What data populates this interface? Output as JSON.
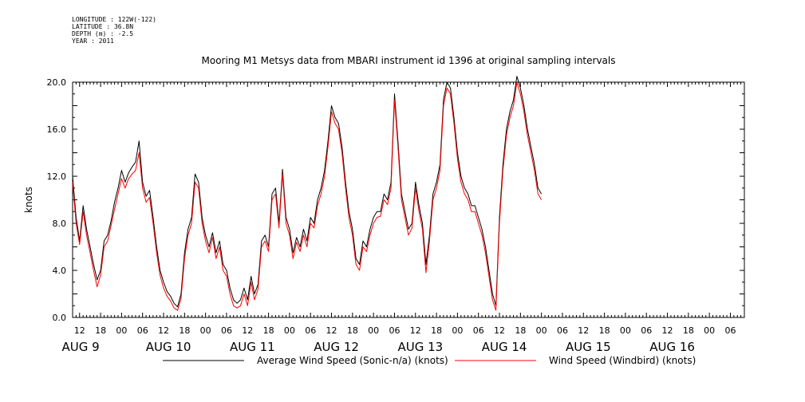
{
  "meta_lines": [
    "LONGITUDE : 122W(-122)",
    "LATITUDE : 36.8N",
    "DEPTH (m) : -2.5",
    "YEAR : 2011"
  ],
  "chart_data": {
    "type": "line",
    "title": "Mooring M1 Metsys data from MBARI instrument id 1396 at original sampling intervals",
    "ylabel": "knots",
    "xlabel": "",
    "ylim": [
      0,
      20.0
    ],
    "y_ticks": [
      "0.0",
      "4.0",
      "8.0",
      "12.0",
      "16.0",
      "20.0"
    ],
    "x_axis_range_hours": [
      -14,
      178
    ],
    "x_hour_ticks": [
      {
        "label": "12",
        "hour": -12
      },
      {
        "label": "18",
        "hour": -6
      },
      {
        "label": "00",
        "hour": 0
      },
      {
        "label": "06",
        "hour": 6
      },
      {
        "label": "12",
        "hour": 12
      },
      {
        "label": "18",
        "hour": 18
      },
      {
        "label": "00",
        "hour": 24
      },
      {
        "label": "06",
        "hour": 30
      },
      {
        "label": "12",
        "hour": 36
      },
      {
        "label": "18",
        "hour": 42
      },
      {
        "label": "00",
        "hour": 48
      },
      {
        "label": "06",
        "hour": 54
      },
      {
        "label": "12",
        "hour": 60
      },
      {
        "label": "18",
        "hour": 66
      },
      {
        "label": "00",
        "hour": 72
      },
      {
        "label": "06",
        "hour": 78
      },
      {
        "label": "12",
        "hour": 84
      },
      {
        "label": "18",
        "hour": 90
      },
      {
        "label": "00",
        "hour": 96
      },
      {
        "label": "06",
        "hour": 102
      },
      {
        "label": "12",
        "hour": 108
      },
      {
        "label": "18",
        "hour": 114
      },
      {
        "label": "00",
        "hour": 120
      },
      {
        "label": "06",
        "hour": 126
      },
      {
        "label": "12",
        "hour": 132
      },
      {
        "label": "18",
        "hour": 138
      },
      {
        "label": "00",
        "hour": 144
      },
      {
        "label": "06",
        "hour": 150
      },
      {
        "label": "12",
        "hour": 156
      },
      {
        "label": "18",
        "hour": 162
      },
      {
        "label": "00",
        "hour": 168
      },
      {
        "label": "06",
        "hour": 174
      }
    ],
    "x_date_labels": [
      {
        "label": "AUG  9",
        "hour": -18
      },
      {
        "label": "AUG 10",
        "hour": 6
      },
      {
        "label": "AUG 11",
        "hour": 30
      },
      {
        "label": "AUG 12",
        "hour": 54
      },
      {
        "label": "AUG 13",
        "hour": 78
      },
      {
        "label": "AUG 14",
        "hour": 102
      },
      {
        "label": "AUG 15",
        "hour": 126
      },
      {
        "label": "AUG 16",
        "hour": 150
      }
    ],
    "series": [
      {
        "name": "Average Wind Speed (Sonic-n/a) (knots)",
        "color": "#000000",
        "points": [
          [
            -14,
            12.0
          ],
          [
            -13,
            8.5
          ],
          [
            -12,
            6.5
          ],
          [
            -11,
            9.5
          ],
          [
            -10,
            7.5
          ],
          [
            -9,
            6.0
          ],
          [
            -8,
            4.5
          ],
          [
            -7,
            3.2
          ],
          [
            -6,
            4.0
          ],
          [
            -5,
            6.5
          ],
          [
            -4,
            7.0
          ],
          [
            -3,
            8.2
          ],
          [
            -2,
            9.8
          ],
          [
            -1,
            11.0
          ],
          [
            0,
            12.5
          ],
          [
            1,
            11.5
          ],
          [
            2,
            12.3
          ],
          [
            3,
            12.8
          ],
          [
            4,
            13.2
          ],
          [
            5,
            15.0
          ],
          [
            6,
            11.5
          ],
          [
            7,
            10.3
          ],
          [
            8,
            10.8
          ],
          [
            9,
            8.5
          ],
          [
            10,
            6.0
          ],
          [
            11,
            4.0
          ],
          [
            12,
            3.0
          ],
          [
            13,
            2.2
          ],
          [
            14,
            1.8
          ],
          [
            15,
            1.2
          ],
          [
            16,
            0.9
          ],
          [
            17,
            2.0
          ],
          [
            18,
            5.5
          ],
          [
            19,
            7.5
          ],
          [
            20,
            8.5
          ],
          [
            21,
            12.2
          ],
          [
            22,
            11.5
          ],
          [
            23,
            8.5
          ],
          [
            24,
            7.0
          ],
          [
            25,
            6.0
          ],
          [
            26,
            7.2
          ],
          [
            27,
            5.5
          ],
          [
            28,
            6.5
          ],
          [
            29,
            4.5
          ],
          [
            30,
            4.0
          ],
          [
            31,
            2.5
          ],
          [
            32,
            1.5
          ],
          [
            33,
            1.2
          ],
          [
            34,
            1.5
          ],
          [
            35,
            2.5
          ],
          [
            36,
            1.5
          ],
          [
            37,
            3.5
          ],
          [
            38,
            2.0
          ],
          [
            39,
            2.8
          ],
          [
            40,
            6.5
          ],
          [
            41,
            7.0
          ],
          [
            42,
            6.0
          ],
          [
            43,
            10.5
          ],
          [
            44,
            11.0
          ],
          [
            45,
            8.0
          ],
          [
            46,
            12.6
          ],
          [
            47,
            8.5
          ],
          [
            48,
            7.5
          ],
          [
            49,
            5.5
          ],
          [
            50,
            6.8
          ],
          [
            51,
            6.0
          ],
          [
            52,
            7.5
          ],
          [
            53,
            6.5
          ],
          [
            54,
            8.5
          ],
          [
            55,
            8.0
          ],
          [
            56,
            10.0
          ],
          [
            57,
            11.0
          ],
          [
            58,
            12.5
          ],
          [
            59,
            15.0
          ],
          [
            60,
            18.0
          ],
          [
            61,
            17.0
          ],
          [
            62,
            16.5
          ],
          [
            63,
            14.5
          ],
          [
            64,
            11.5
          ],
          [
            65,
            9.0
          ],
          [
            66,
            7.5
          ],
          [
            67,
            5.0
          ],
          [
            68,
            4.5
          ],
          [
            69,
            6.5
          ],
          [
            70,
            6.0
          ],
          [
            71,
            7.5
          ],
          [
            72,
            8.5
          ],
          [
            73,
            9.0
          ],
          [
            74,
            9.0
          ],
          [
            75,
            10.5
          ],
          [
            76,
            10.0
          ],
          [
            77,
            11.5
          ],
          [
            78,
            19.0
          ],
          [
            79,
            15.0
          ],
          [
            80,
            10.5
          ],
          [
            81,
            9.0
          ],
          [
            82,
            7.5
          ],
          [
            83,
            8.0
          ],
          [
            84,
            11.5
          ],
          [
            85,
            9.5
          ],
          [
            86,
            8.0
          ],
          [
            87,
            4.5
          ],
          [
            88,
            7.0
          ],
          [
            89,
            10.5
          ],
          [
            90,
            11.5
          ],
          [
            91,
            13.0
          ],
          [
            92,
            18.5
          ],
          [
            93,
            20.0
          ],
          [
            94,
            19.5
          ],
          [
            95,
            17.0
          ],
          [
            96,
            14.0
          ],
          [
            97,
            12.0
          ],
          [
            98,
            11.0
          ],
          [
            99,
            10.5
          ],
          [
            100,
            9.5
          ],
          [
            101,
            9.5
          ],
          [
            102,
            8.5
          ],
          [
            103,
            7.5
          ],
          [
            104,
            6.0
          ],
          [
            105,
            4.0
          ],
          [
            106,
            2.0
          ],
          [
            107,
            1.0
          ],
          [
            108,
            8.5
          ],
          [
            109,
            13.0
          ],
          [
            110,
            16.0
          ],
          [
            111,
            17.5
          ],
          [
            112,
            18.5
          ],
          [
            113,
            20.5
          ],
          [
            114,
            19.5
          ],
          [
            115,
            18.0
          ],
          [
            116,
            16.0
          ],
          [
            117,
            14.5
          ],
          [
            118,
            13.0
          ],
          [
            119,
            11.0
          ],
          [
            120,
            10.5
          ]
        ]
      },
      {
        "name": "Wind Speed (Windbird) (knots)",
        "color": "#ff0000",
        "points": [
          [
            -14,
            11.5
          ],
          [
            -13,
            8.0
          ],
          [
            -12,
            6.2
          ],
          [
            -11,
            9.0
          ],
          [
            -10,
            7.0
          ],
          [
            -9,
            5.5
          ],
          [
            -8,
            4.0
          ],
          [
            -7,
            2.6
          ],
          [
            -6,
            3.6
          ],
          [
            -5,
            6.0
          ],
          [
            -4,
            6.5
          ],
          [
            -3,
            7.8
          ],
          [
            -2,
            9.2
          ],
          [
            -1,
            10.5
          ],
          [
            0,
            11.8
          ],
          [
            1,
            11.0
          ],
          [
            2,
            11.8
          ],
          [
            3,
            12.2
          ],
          [
            4,
            12.5
          ],
          [
            5,
            14.0
          ],
          [
            6,
            11.0
          ],
          [
            7,
            9.8
          ],
          [
            8,
            10.2
          ],
          [
            9,
            8.0
          ],
          [
            10,
            5.5
          ],
          [
            11,
            3.6
          ],
          [
            12,
            2.5
          ],
          [
            13,
            1.8
          ],
          [
            14,
            1.4
          ],
          [
            15,
            0.8
          ],
          [
            16,
            0.6
          ],
          [
            17,
            1.6
          ],
          [
            18,
            5.0
          ],
          [
            19,
            7.0
          ],
          [
            20,
            8.0
          ],
          [
            21,
            11.5
          ],
          [
            22,
            11.0
          ],
          [
            23,
            8.0
          ],
          [
            24,
            6.5
          ],
          [
            25,
            5.5
          ],
          [
            26,
            6.8
          ],
          [
            27,
            5.0
          ],
          [
            28,
            6.0
          ],
          [
            29,
            4.0
          ],
          [
            30,
            3.5
          ],
          [
            31,
            2.0
          ],
          [
            32,
            1.0
          ],
          [
            33,
            0.8
          ],
          [
            34,
            1.0
          ],
          [
            35,
            2.0
          ],
          [
            36,
            1.0
          ],
          [
            37,
            3.0
          ],
          [
            38,
            1.5
          ],
          [
            39,
            2.4
          ],
          [
            40,
            6.0
          ],
          [
            41,
            6.5
          ],
          [
            42,
            5.6
          ],
          [
            43,
            10.0
          ],
          [
            44,
            10.5
          ],
          [
            45,
            7.6
          ],
          [
            46,
            12.2
          ],
          [
            47,
            8.0
          ],
          [
            48,
            7.0
          ],
          [
            49,
            5.0
          ],
          [
            50,
            6.4
          ],
          [
            51,
            5.6
          ],
          [
            52,
            7.0
          ],
          [
            53,
            6.0
          ],
          [
            54,
            8.0
          ],
          [
            55,
            7.6
          ],
          [
            56,
            9.5
          ],
          [
            57,
            10.5
          ],
          [
            58,
            12.0
          ],
          [
            59,
            14.5
          ],
          [
            60,
            17.5
          ],
          [
            61,
            16.5
          ],
          [
            62,
            16.0
          ],
          [
            63,
            14.0
          ],
          [
            64,
            11.0
          ],
          [
            65,
            8.5
          ],
          [
            66,
            7.0
          ],
          [
            67,
            4.5
          ],
          [
            68,
            4.0
          ],
          [
            69,
            6.0
          ],
          [
            70,
            5.6
          ],
          [
            71,
            7.0
          ],
          [
            72,
            8.0
          ],
          [
            73,
            8.5
          ],
          [
            74,
            8.6
          ],
          [
            75,
            10.0
          ],
          [
            76,
            9.6
          ],
          [
            77,
            11.0
          ],
          [
            78,
            18.5
          ],
          [
            79,
            14.5
          ],
          [
            80,
            10.0
          ],
          [
            81,
            8.5
          ],
          [
            82,
            7.0
          ],
          [
            83,
            7.6
          ],
          [
            84,
            11.0
          ],
          [
            85,
            9.0
          ],
          [
            86,
            7.5
          ],
          [
            87,
            3.8
          ],
          [
            88,
            6.5
          ],
          [
            89,
            10.0
          ],
          [
            90,
            11.0
          ],
          [
            91,
            12.5
          ],
          [
            92,
            18.0
          ],
          [
            93,
            19.5
          ],
          [
            94,
            19.0
          ],
          [
            95,
            16.5
          ],
          [
            96,
            13.5
          ],
          [
            97,
            11.5
          ],
          [
            98,
            10.5
          ],
          [
            99,
            10.0
          ],
          [
            100,
            9.0
          ],
          [
            101,
            9.0
          ],
          [
            102,
            8.0
          ],
          [
            103,
            7.0
          ],
          [
            104,
            5.5
          ],
          [
            105,
            3.5
          ],
          [
            106,
            1.5
          ],
          [
            107,
            0.6
          ],
          [
            108,
            8.0
          ],
          [
            109,
            12.5
          ],
          [
            110,
            15.5
          ],
          [
            111,
            17.0
          ],
          [
            112,
            18.0
          ],
          [
            113,
            20.0
          ],
          [
            114,
            19.0
          ],
          [
            115,
            17.5
          ],
          [
            116,
            15.5
          ],
          [
            117,
            14.0
          ],
          [
            118,
            12.5
          ],
          [
            119,
            10.5
          ],
          [
            120,
            10.0
          ]
        ]
      }
    ],
    "legend": [
      {
        "label": "Average Wind Speed (Sonic-n/a) (knots)",
        "color": "#000000"
      },
      {
        "label": "Wind Speed (Windbird) (knots)",
        "color": "#ff0000"
      }
    ],
    "grid": false
  }
}
